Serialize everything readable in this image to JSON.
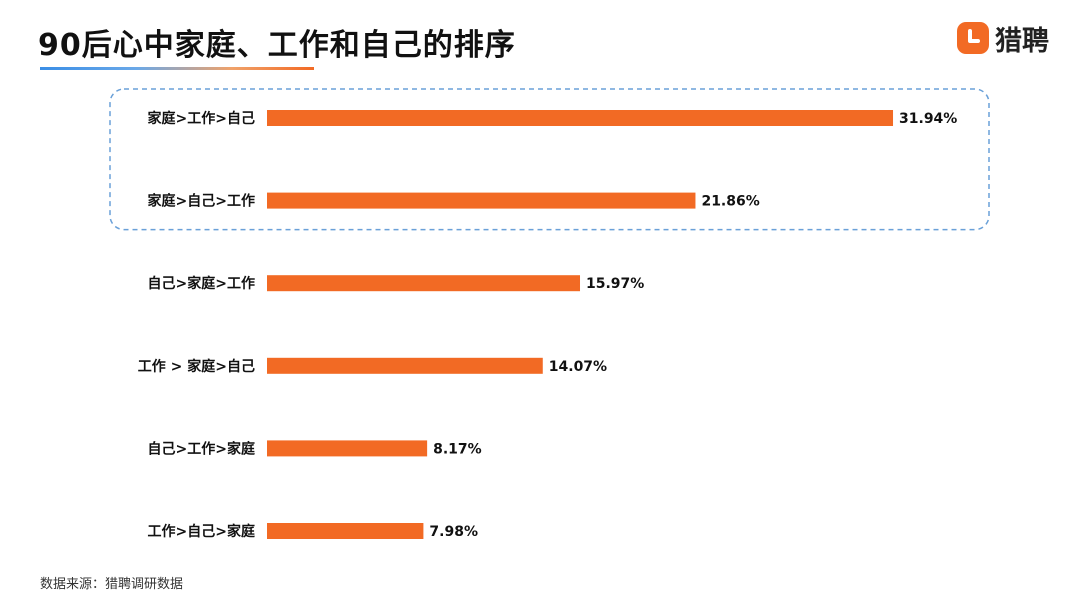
{
  "title": "90后心中家庭、工作和自己的排序",
  "logo": {
    "icon": "liepin-logo-icon",
    "text": "猎聘",
    "color": "#f26a24"
  },
  "source": "数据来源：猎聘调研数据",
  "colors": {
    "bar": "#f26a24",
    "highlight_border": "#6aa0d8"
  },
  "chart_data": {
    "type": "bar",
    "orientation": "horizontal",
    "categories": [
      "家庭>工作>自己",
      "家庭>自己>工作",
      "自己>家庭>工作",
      "工作 > 家庭>自己",
      "自己>工作>家庭",
      "工作>自己>家庭"
    ],
    "values": [
      31.94,
      21.86,
      15.97,
      14.07,
      8.17,
      7.98
    ],
    "labels": [
      "31.94%",
      "21.86%",
      "15.97%",
      "14.07%",
      "8.17%",
      "7.98%"
    ],
    "unit": "%",
    "highlighted": [
      0,
      1
    ],
    "grid": false,
    "legend": "none"
  }
}
